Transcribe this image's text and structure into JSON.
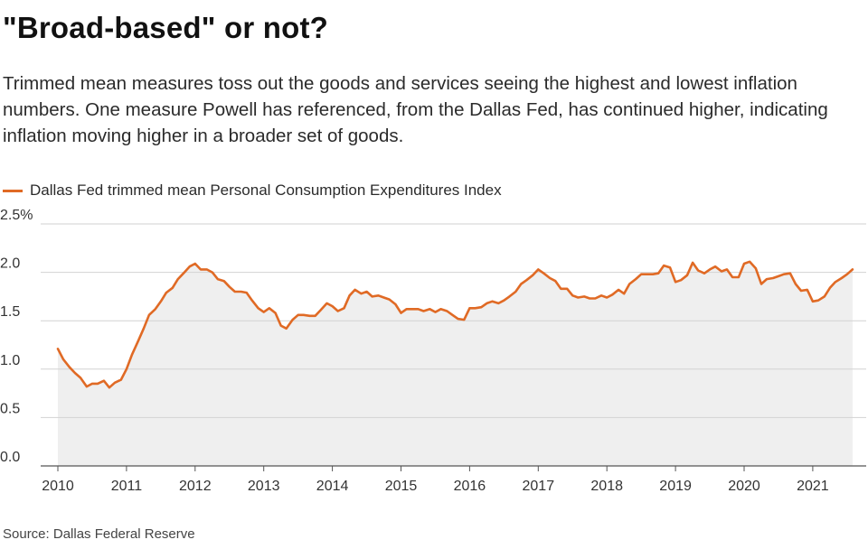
{
  "header": {
    "title": "\"Broad-based\" or not?",
    "subtitle": "Trimmed mean measures toss out the goods and services seeing the highest and lowest inflation numbers. One measure Powell has referenced, from the Dallas Fed, has continued higher, indicating inflation moving higher in a broader set of goods."
  },
  "source": "Source: Dallas Federal Reserve",
  "colors": {
    "line": "#e06a25",
    "fill": "#efefef",
    "grid": "#d2d2d2",
    "axis": "#555555"
  },
  "chart_data": {
    "type": "area",
    "title": "\"Broad-based\" or not?",
    "xlabel": "",
    "ylabel": "",
    "xlim": [
      2010.0,
      2021.75
    ],
    "ylim": [
      0,
      2.5
    ],
    "grid": true,
    "legend_position": "top-left",
    "y_ticks": [
      {
        "value": 2.5,
        "label": "2.5%"
      },
      {
        "value": 2.0,
        "label": "2.0"
      },
      {
        "value": 1.5,
        "label": "1.5"
      },
      {
        "value": 1.0,
        "label": "1.0"
      },
      {
        "value": 0.5,
        "label": "0.5"
      },
      {
        "value": 0.0,
        "label": "0.0"
      }
    ],
    "x_ticks": [
      {
        "value": 2010,
        "label": "2010"
      },
      {
        "value": 2011,
        "label": "2011"
      },
      {
        "value": 2012,
        "label": "2012"
      },
      {
        "value": 2013,
        "label": "2013"
      },
      {
        "value": 2014,
        "label": "2014"
      },
      {
        "value": 2015,
        "label": "2015"
      },
      {
        "value": 2016,
        "label": "2016"
      },
      {
        "value": 2017,
        "label": "2017"
      },
      {
        "value": 2018,
        "label": "2018"
      },
      {
        "value": 2019,
        "label": "2019"
      },
      {
        "value": 2020,
        "label": "2020"
      },
      {
        "value": 2021,
        "label": "2021"
      }
    ],
    "series": [
      {
        "name": "Dallas Fed trimmed mean Personal Consumption Expenditures Index",
        "points": [
          [
            2010.0,
            1.21
          ],
          [
            2010.08,
            1.1
          ],
          [
            2010.17,
            1.02
          ],
          [
            2010.25,
            0.96
          ],
          [
            2010.33,
            0.91
          ],
          [
            2010.42,
            0.82
          ],
          [
            2010.5,
            0.85
          ],
          [
            2010.58,
            0.85
          ],
          [
            2010.67,
            0.88
          ],
          [
            2010.75,
            0.81
          ],
          [
            2010.83,
            0.86
          ],
          [
            2010.92,
            0.89
          ],
          [
            2011.0,
            1.0
          ],
          [
            2011.08,
            1.15
          ],
          [
            2011.17,
            1.29
          ],
          [
            2011.25,
            1.42
          ],
          [
            2011.33,
            1.56
          ],
          [
            2011.42,
            1.62
          ],
          [
            2011.5,
            1.7
          ],
          [
            2011.58,
            1.79
          ],
          [
            2011.67,
            1.84
          ],
          [
            2011.75,
            1.93
          ],
          [
            2011.83,
            1.99
          ],
          [
            2011.92,
            2.06
          ],
          [
            2012.0,
            2.09
          ],
          [
            2012.08,
            2.03
          ],
          [
            2012.17,
            2.03
          ],
          [
            2012.25,
            2.0
          ],
          [
            2012.33,
            1.93
          ],
          [
            2012.42,
            1.91
          ],
          [
            2012.5,
            1.85
          ],
          [
            2012.58,
            1.8
          ],
          [
            2012.67,
            1.8
          ],
          [
            2012.75,
            1.79
          ],
          [
            2012.83,
            1.71
          ],
          [
            2012.92,
            1.63
          ],
          [
            2013.0,
            1.59
          ],
          [
            2013.08,
            1.63
          ],
          [
            2013.17,
            1.58
          ],
          [
            2013.25,
            1.45
          ],
          [
            2013.33,
            1.42
          ],
          [
            2013.42,
            1.51
          ],
          [
            2013.5,
            1.56
          ],
          [
            2013.58,
            1.56
          ],
          [
            2013.67,
            1.55
          ],
          [
            2013.75,
            1.55
          ],
          [
            2013.83,
            1.61
          ],
          [
            2013.92,
            1.68
          ],
          [
            2014.0,
            1.65
          ],
          [
            2014.08,
            1.6
          ],
          [
            2014.17,
            1.63
          ],
          [
            2014.25,
            1.76
          ],
          [
            2014.33,
            1.82
          ],
          [
            2014.42,
            1.78
          ],
          [
            2014.5,
            1.8
          ],
          [
            2014.58,
            1.75
          ],
          [
            2014.67,
            1.76
          ],
          [
            2014.75,
            1.74
          ],
          [
            2014.83,
            1.72
          ],
          [
            2014.92,
            1.67
          ],
          [
            2015.0,
            1.58
          ],
          [
            2015.08,
            1.62
          ],
          [
            2015.17,
            1.62
          ],
          [
            2015.25,
            1.62
          ],
          [
            2015.33,
            1.6
          ],
          [
            2015.42,
            1.62
          ],
          [
            2015.5,
            1.59
          ],
          [
            2015.58,
            1.62
          ],
          [
            2015.67,
            1.6
          ],
          [
            2015.75,
            1.56
          ],
          [
            2015.83,
            1.52
          ],
          [
            2015.92,
            1.51
          ],
          [
            2016.0,
            1.63
          ],
          [
            2016.08,
            1.63
          ],
          [
            2016.17,
            1.64
          ],
          [
            2016.25,
            1.68
          ],
          [
            2016.33,
            1.7
          ],
          [
            2016.42,
            1.68
          ],
          [
            2016.5,
            1.71
          ],
          [
            2016.58,
            1.75
          ],
          [
            2016.67,
            1.8
          ],
          [
            2016.75,
            1.88
          ],
          [
            2016.83,
            1.92
          ],
          [
            2016.92,
            1.97
          ],
          [
            2017.0,
            2.03
          ],
          [
            2017.08,
            1.99
          ],
          [
            2017.17,
            1.94
          ],
          [
            2017.25,
            1.91
          ],
          [
            2017.33,
            1.83
          ],
          [
            2017.42,
            1.83
          ],
          [
            2017.5,
            1.76
          ],
          [
            2017.58,
            1.74
          ],
          [
            2017.67,
            1.75
          ],
          [
            2017.75,
            1.73
          ],
          [
            2017.83,
            1.73
          ],
          [
            2017.92,
            1.76
          ],
          [
            2018.0,
            1.74
          ],
          [
            2018.08,
            1.77
          ],
          [
            2018.17,
            1.82
          ],
          [
            2018.25,
            1.78
          ],
          [
            2018.33,
            1.88
          ],
          [
            2018.42,
            1.93
          ],
          [
            2018.5,
            1.98
          ],
          [
            2018.58,
            1.98
          ],
          [
            2018.67,
            1.98
          ],
          [
            2018.75,
            1.99
          ],
          [
            2018.83,
            2.07
          ],
          [
            2018.92,
            2.05
          ],
          [
            2019.0,
            1.9
          ],
          [
            2019.08,
            1.92
          ],
          [
            2019.17,
            1.97
          ],
          [
            2019.25,
            2.1
          ],
          [
            2019.33,
            2.02
          ],
          [
            2019.42,
            1.99
          ],
          [
            2019.5,
            2.03
          ],
          [
            2019.58,
            2.06
          ],
          [
            2019.67,
            2.01
          ],
          [
            2019.75,
            2.03
          ],
          [
            2019.83,
            1.95
          ],
          [
            2019.92,
            1.95
          ],
          [
            2020.0,
            2.09
          ],
          [
            2020.08,
            2.11
          ],
          [
            2020.17,
            2.04
          ],
          [
            2020.25,
            1.88
          ],
          [
            2020.33,
            1.93
          ],
          [
            2020.42,
            1.94
          ],
          [
            2020.5,
            1.96
          ],
          [
            2020.58,
            1.98
          ],
          [
            2020.67,
            1.99
          ],
          [
            2020.75,
            1.88
          ],
          [
            2020.83,
            1.81
          ],
          [
            2020.92,
            1.82
          ],
          [
            2021.0,
            1.7
          ],
          [
            2021.08,
            1.71
          ],
          [
            2021.17,
            1.75
          ],
          [
            2021.25,
            1.84
          ],
          [
            2021.33,
            1.9
          ],
          [
            2021.42,
            1.94
          ],
          [
            2021.5,
            1.98
          ],
          [
            2021.58,
            2.03
          ]
        ]
      }
    ]
  }
}
